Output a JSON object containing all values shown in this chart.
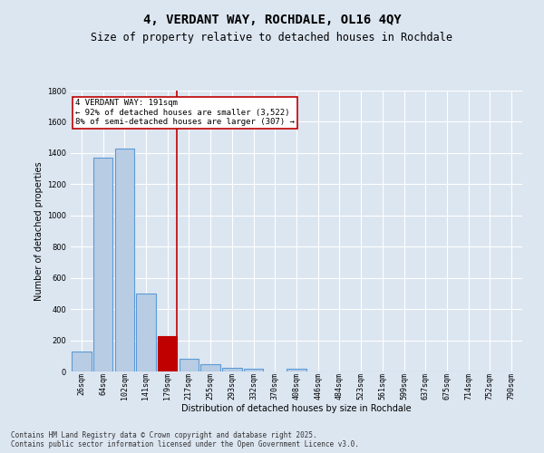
{
  "title": "4, VERDANT WAY, ROCHDALE, OL16 4QY",
  "subtitle": "Size of property relative to detached houses in Rochdale",
  "xlabel": "Distribution of detached houses by size in Rochdale",
  "ylabel": "Number of detached properties",
  "categories": [
    "26sqm",
    "64sqm",
    "102sqm",
    "141sqm",
    "179sqm",
    "217sqm",
    "255sqm",
    "293sqm",
    "332sqm",
    "370sqm",
    "408sqm",
    "446sqm",
    "484sqm",
    "523sqm",
    "561sqm",
    "599sqm",
    "637sqm",
    "675sqm",
    "714sqm",
    "752sqm",
    "790sqm"
  ],
  "values": [
    130,
    1370,
    1430,
    500,
    225,
    80,
    45,
    25,
    20,
    0,
    20,
    0,
    0,
    0,
    0,
    0,
    0,
    0,
    0,
    0,
    0
  ],
  "bar_color": "#b8cce4",
  "bar_edge_color": "#5b9bd5",
  "highlight_bar_index": 4,
  "highlight_bar_color": "#c00000",
  "highlight_bar_edge_color": "#c00000",
  "vline_color": "#c00000",
  "annotation_text": "4 VERDANT WAY: 191sqm\n← 92% of detached houses are smaller (3,522)\n8% of semi-detached houses are larger (307) →",
  "annotation_box_color": "#c00000",
  "background_color": "#dce6f1",
  "plot_bg_color": "#dce6f1",
  "ylim": [
    0,
    1800
  ],
  "yticks": [
    0,
    200,
    400,
    600,
    800,
    1000,
    1200,
    1400,
    1600,
    1800
  ],
  "footer_line1": "Contains HM Land Registry data © Crown copyright and database right 2025.",
  "footer_line2": "Contains public sector information licensed under the Open Government Licence v3.0.",
  "title_fontsize": 10,
  "subtitle_fontsize": 8.5,
  "axis_label_fontsize": 7,
  "tick_fontsize": 6,
  "annotation_fontsize": 6.5,
  "footer_fontsize": 5.5
}
